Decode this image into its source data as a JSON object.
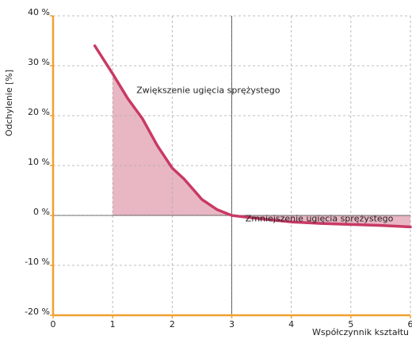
{
  "chart_data": {
    "type": "line",
    "x_label": "Współczynnik kształtu",
    "y_label": "Odchylenie [%]",
    "x": [
      0.7,
      1,
      1.25,
      1.5,
      1.75,
      2,
      2.2,
      2.5,
      2.75,
      3,
      3.5,
      4,
      4.5,
      5,
      5.5,
      6
    ],
    "series": [
      {
        "name": "Odchylenie",
        "color": "#c83a64",
        "values": [
          34,
          28.4,
          23.5,
          19.4,
          14,
          9.5,
          7.3,
          3.2,
          1.2,
          0,
          -0.7,
          -1.3,
          -1.6,
          -1.8,
          -2,
          -2.3
        ]
      }
    ],
    "area": {
      "color": "#e4aab8",
      "from_x": 1
    },
    "annotations": [
      {
        "text": "Zwiększenie ugięcia sprężystego",
        "x": 1.4,
        "y": 25
      },
      {
        "text": "Zmniejszenie ugięcia sprężystego",
        "x": 3.23,
        "y": -0.7
      }
    ],
    "xlim": [
      0,
      6
    ],
    "xticks": [
      0,
      1,
      2,
      3,
      4,
      5,
      6
    ],
    "ylim": [
      -20,
      40
    ],
    "yticks": [
      {
        "value": -20,
        "label": "-20 %"
      },
      {
        "value": -10,
        "label": "-10 %"
      },
      {
        "value": 0,
        "label": "0 %"
      },
      {
        "value": 10,
        "label": "10 %"
      },
      {
        "value": 20,
        "label": "20 %"
      },
      {
        "value": 30,
        "label": "30 %"
      },
      {
        "value": 40,
        "label": "40 %"
      }
    ],
    "grid": true,
    "axis_color": "#f0a030",
    "ref_lines": {
      "x": 3,
      "y": 0
    }
  }
}
